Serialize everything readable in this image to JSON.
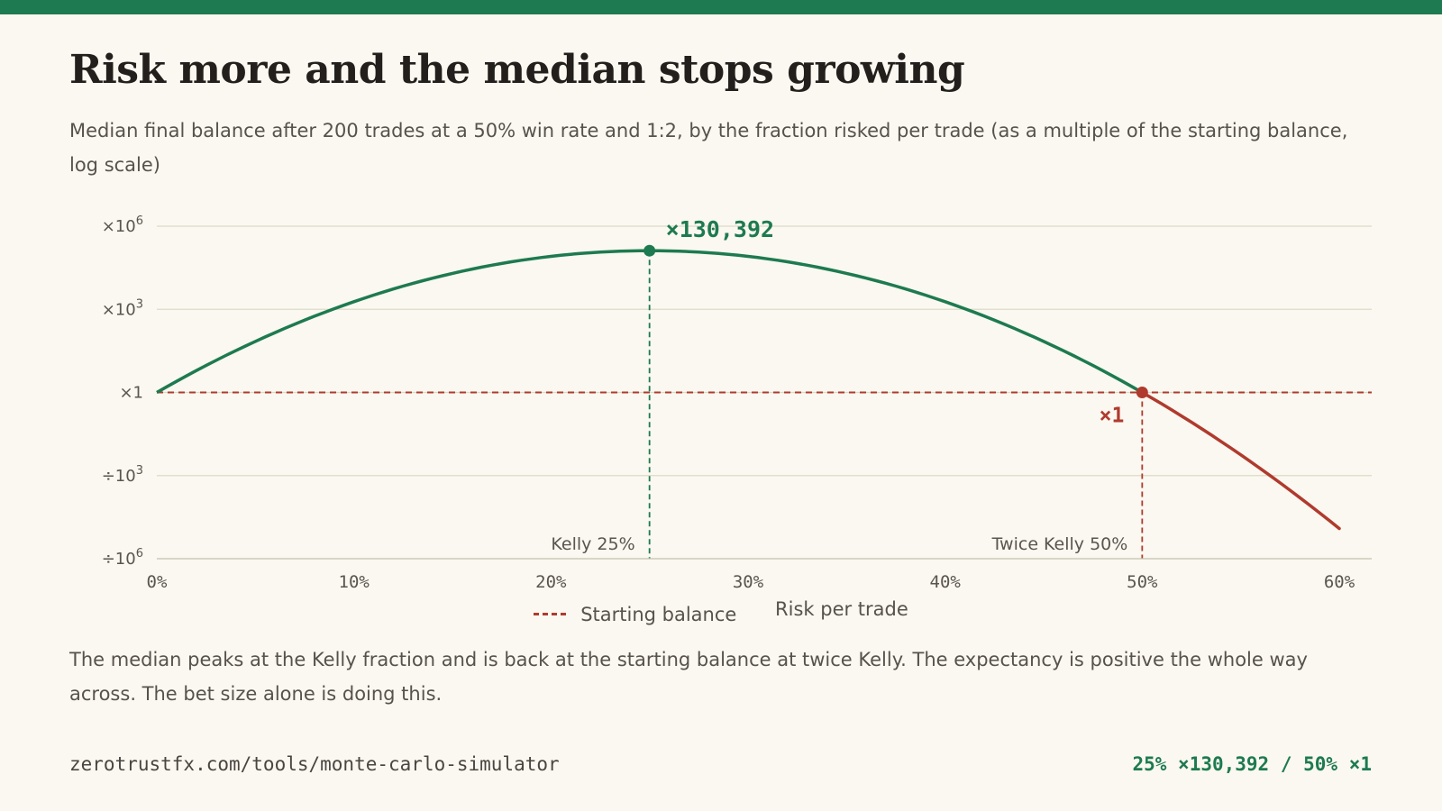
{
  "title": "Risk more and the median stops growing",
  "subtitle": "Median final balance after 200 trades at a 50% win rate and 1:2, by the fraction risked per trade (as a multiple of the starting balance, log scale)",
  "caption": "The median peaks at the Kelly fraction and is back at the starting balance at twice Kelly. The expectancy is positive the whole way across. The bet size alone is doing this.",
  "footer": {
    "url": "zerotrustfx.com/tools/monte-carlo-simulator",
    "stats": "25% ×130,392 / 50% ×1"
  },
  "legend": {
    "starting_balance": "Starting balance",
    "risk_per_trade": "Risk per trade"
  },
  "colors": {
    "green": "#1e7a50",
    "red": "#b03a2e",
    "grid": "#dcdac8"
  },
  "chart_data": {
    "type": "line",
    "x_unit": "fraction risked per trade (%)",
    "y_scale": "log10",
    "xlim": [
      0,
      60
    ],
    "ylim_log10": [
      -6,
      6
    ],
    "x_ticks": [
      {
        "value": 0,
        "label": "0%"
      },
      {
        "value": 10,
        "label": "10%"
      },
      {
        "value": 20,
        "label": "20%"
      },
      {
        "value": 30,
        "label": "30%"
      },
      {
        "value": 40,
        "label": "40%"
      },
      {
        "value": 50,
        "label": "50%"
      },
      {
        "value": 60,
        "label": "60%"
      }
    ],
    "y_ticks": [
      {
        "log10": 6,
        "base": "×10",
        "exp": "6"
      },
      {
        "log10": 3,
        "base": "×10",
        "exp": "3"
      },
      {
        "log10": 0,
        "base": "×1",
        "exp": ""
      },
      {
        "log10": -3,
        "base": "÷10",
        "exp": "3"
      },
      {
        "log10": -6,
        "base": "÷10",
        "exp": "6"
      }
    ],
    "series_x": [
      0,
      5,
      10,
      15,
      20,
      25,
      30,
      35,
      40,
      45,
      50,
      55,
      60
    ],
    "series_y": [
      1,
      14.5,
      1220,
      18800,
      90000,
      130392,
      82000,
      9300,
      220,
      0.94,
      1,
      0.00075,
      7.5e-07
    ],
    "peak": {
      "x": 25,
      "y": 130392,
      "label": "×130,392"
    },
    "break_even": {
      "x": 50,
      "y": 1,
      "label": "×1"
    },
    "reference_lines": [
      {
        "x": 25,
        "label": "Kelly 25%"
      },
      {
        "x": 50,
        "label": "Twice Kelly 50%"
      }
    ],
    "baseline_y": 1
  }
}
